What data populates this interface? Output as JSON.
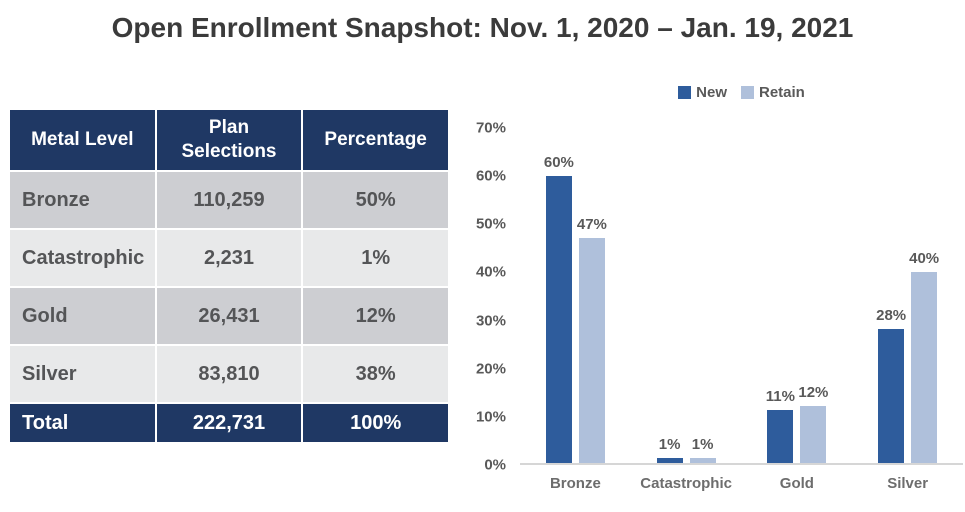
{
  "title": "Open Enrollment Snapshot: Nov. 1, 2020 – Jan. 19, 2021",
  "table": {
    "headers": [
      "Metal Level",
      "Plan Selections",
      "Percentage"
    ],
    "rows": [
      {
        "metal": "Bronze",
        "selections": "110,259",
        "percentage": "50%"
      },
      {
        "metal": "Catastrophic",
        "selections": "2,231",
        "percentage": "1%"
      },
      {
        "metal": "Gold",
        "selections": "26,431",
        "percentage": "12%"
      },
      {
        "metal": "Silver",
        "selections": "83,810",
        "percentage": "38%"
      }
    ],
    "total": {
      "metal": "Total",
      "selections": "222,731",
      "percentage": "100%"
    }
  },
  "chart_data": {
    "type": "bar",
    "categories": [
      "Bronze",
      "Catastrophic",
      "Gold",
      "Silver"
    ],
    "series": [
      {
        "name": "New",
        "values": [
          60,
          1,
          11,
          28
        ],
        "color": "#2e5c9c"
      },
      {
        "name": "Retain",
        "values": [
          47,
          1,
          12,
          40
        ],
        "color": "#afc0db"
      }
    ],
    "value_suffix": "%",
    "title": "",
    "xlabel": "",
    "ylabel": "",
    "ylim": [
      0,
      70
    ],
    "ytick_step": 10,
    "grid": false,
    "legend_position": "top"
  },
  "colors": {
    "navy": "#1f3864",
    "row_dark_gray": "#cdced2",
    "row_light_gray": "#e8e9ea",
    "body_text_gray": "#545557",
    "chart_text_gray": "#595959",
    "axis_line_gray": "#d6d6d6",
    "new_blue": "#2e5c9c",
    "retain_blue": "#afc0db"
  }
}
